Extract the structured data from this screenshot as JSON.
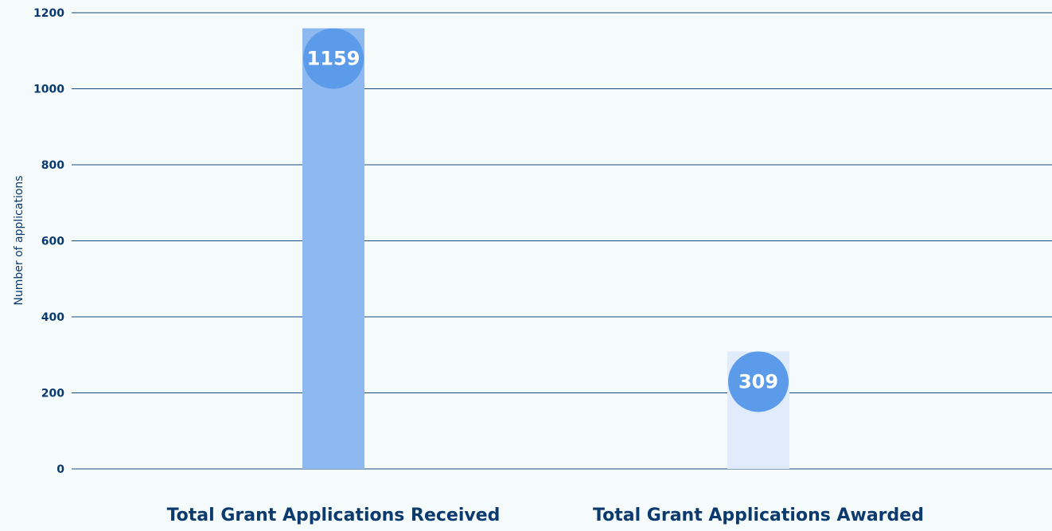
{
  "chart_data": {
    "type": "bar",
    "y_axis_label": "Number of applications",
    "categories": [
      "Total Grant Applications Received",
      "Total Grant Applications Awarded"
    ],
    "values": [
      1159,
      309
    ],
    "colors": [
      "#8db8f0",
      "#e0ecfb"
    ],
    "label_color": "#5b9bea",
    "ylim": [
      0,
      1200
    ],
    "yticks": [
      0,
      200,
      400,
      600,
      800,
      1000,
      1200
    ],
    "grid": true
  }
}
